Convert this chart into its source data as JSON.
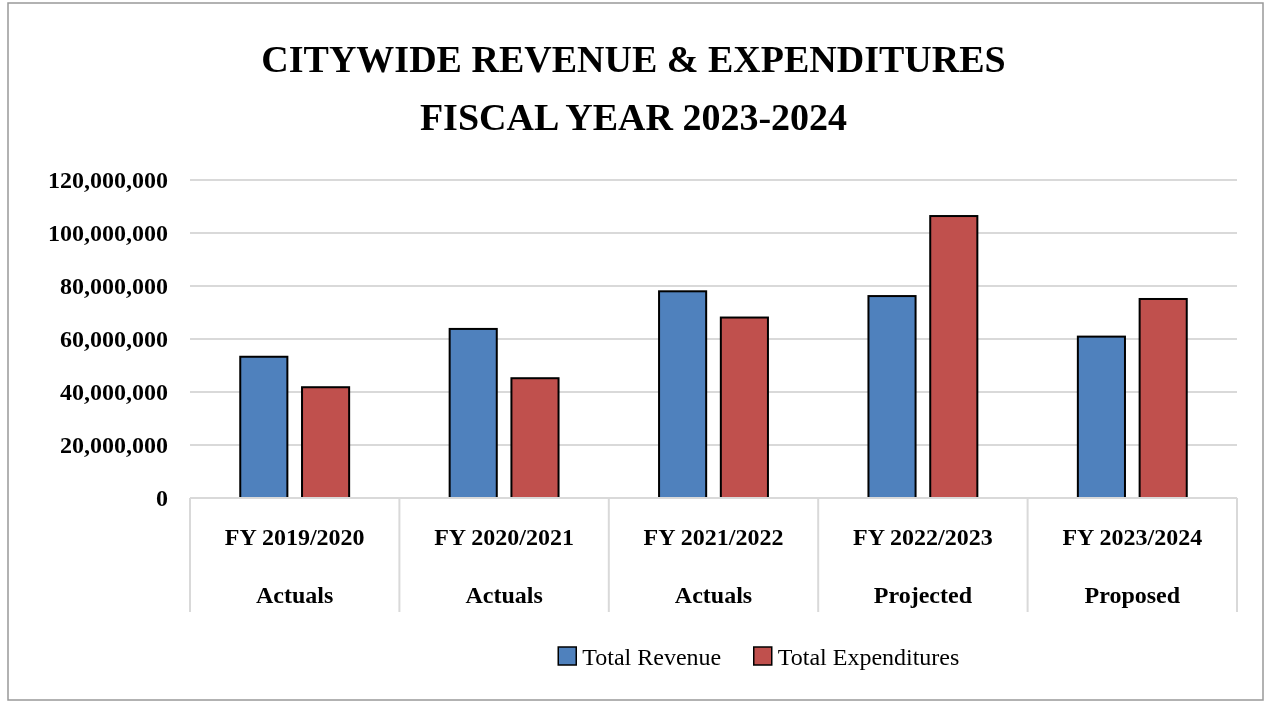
{
  "chart_data": {
    "type": "bar",
    "title": "CITYWIDE REVENUE & EXPENDITURES\nFISCAL YEAR 2023-2024",
    "categories": [
      "FY 2019/2020\nActuals",
      "FY 2020/2021\nActuals",
      "FY 2021/2022\nActuals",
      "FY 2022/2023\nProjected",
      "FY 2023/2024\nProposed"
    ],
    "series": [
      {
        "name": "Total Revenue",
        "color": "#4f81bd",
        "values": [
          53300000,
          63800000,
          78000000,
          76200000,
          60900000
        ]
      },
      {
        "name": "Total Expenditures",
        "color": "#c0504d",
        "values": [
          41800000,
          45200000,
          68100000,
          106400000,
          75100000
        ]
      }
    ],
    "ylim": [
      0,
      120000000
    ],
    "yticks": [
      {
        "value": 0,
        "label": "0"
      },
      {
        "value": 20000000,
        "label": "20,000,000"
      },
      {
        "value": 40000000,
        "label": "40,000,000"
      },
      {
        "value": 60000000,
        "label": "60,000,000"
      },
      {
        "value": 80000000,
        "label": "80,000,000"
      },
      {
        "value": 100000000,
        "label": "100,000,000"
      },
      {
        "value": 120000000,
        "label": "120,000,000"
      }
    ],
    "grid": "y",
    "legend": "bottom"
  }
}
